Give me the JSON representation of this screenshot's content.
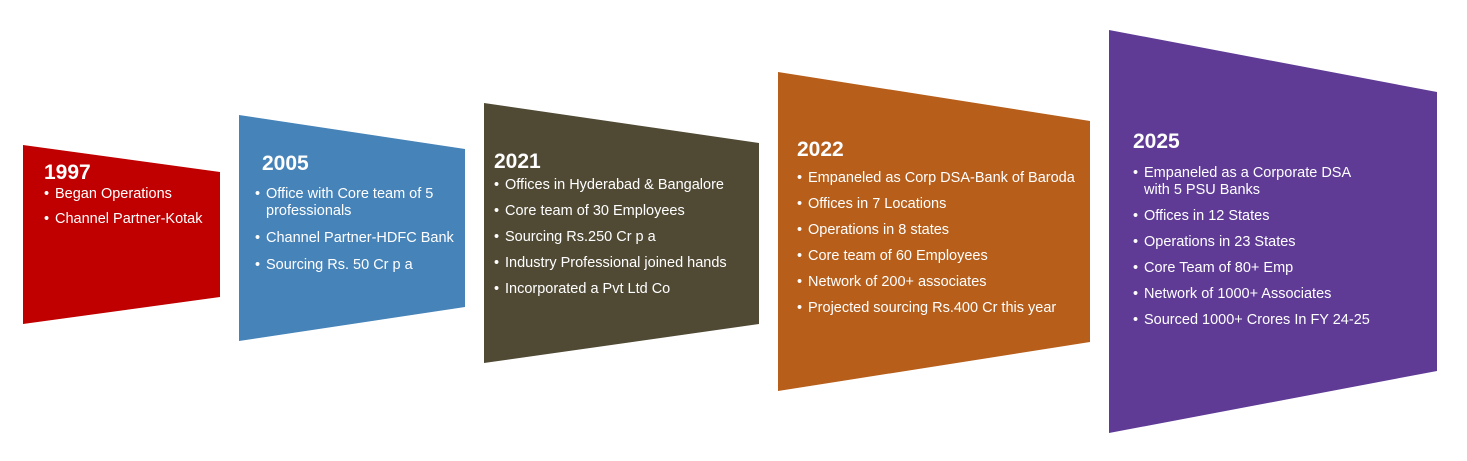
{
  "colors": {
    "step_1": "#c00000",
    "step_2": "#4683b8",
    "step_3": "#504a35",
    "step_4": "#b65e1a",
    "step_5": "#5f3b96",
    "text": "#ffffff"
  },
  "steps": [
    {
      "year": "1997",
      "items": [
        "Began Operations",
        "Channel Partner-Kotak"
      ]
    },
    {
      "year": "2005",
      "items": [
        "Office with Core team of 5 professionals",
        "Channel Partner-HDFC Bank",
        "Sourcing Rs. 50 Cr p a"
      ]
    },
    {
      "year": "2021",
      "items": [
        "Offices in Hyderabad & Bangalore",
        "Core team of 30 Employees",
        "Sourcing Rs.250 Cr p a",
        "Industry Professional joined hands",
        "Incorporated a Pvt Ltd Co"
      ]
    },
    {
      "year": "2022",
      "items": [
        "Empaneled as Corp DSA-Bank of Baroda",
        "Offices in 7 Locations",
        "Operations in 8 states",
        "Core team of 60 Employees",
        "Network of 200+ associates",
        "Projected sourcing Rs.400 Cr this year"
      ]
    },
    {
      "year": "2025",
      "items": [
        "Empaneled as a Corporate DSA with 5 PSU Banks",
        "Offices in 12 States",
        "Operations in 23 States",
        "Core Team of 80+ Emp",
        "Network of 1000+ Associates",
        "Sourced 1000+ Crores In FY 24-25"
      ]
    }
  ]
}
